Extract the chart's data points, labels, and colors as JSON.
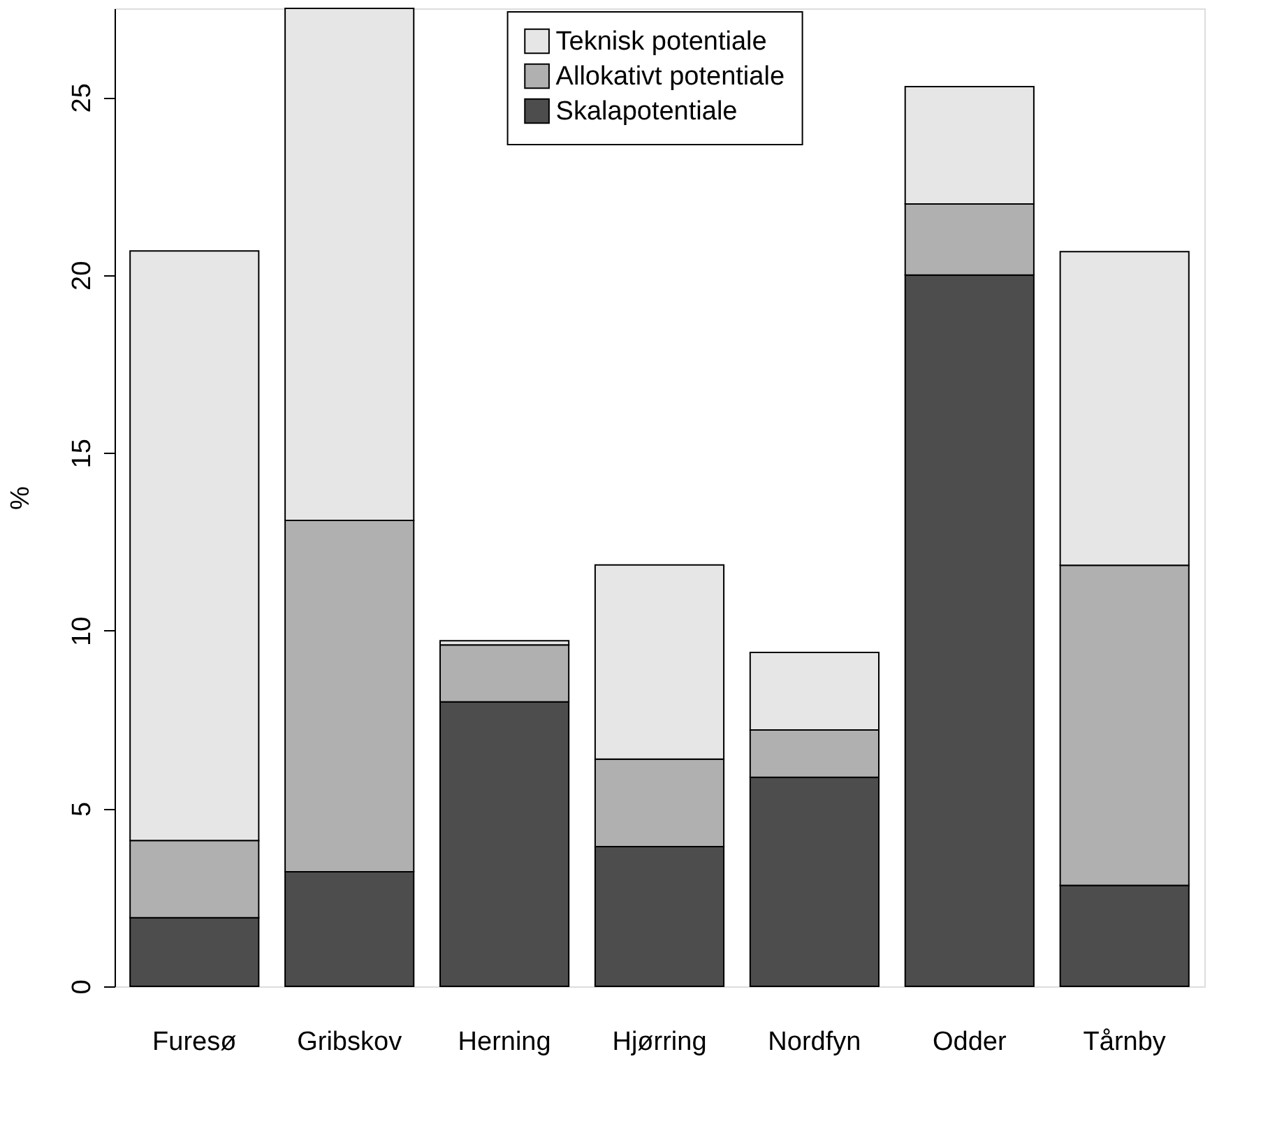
{
  "chart_data": {
    "type": "bar",
    "stacked": true,
    "ylabel": "%",
    "categories": [
      "Furesø",
      "Gribskov",
      "Herning",
      "Hjørring",
      "Nordfyn",
      "Odder",
      "Tårnby"
    ],
    "series": [
      {
        "name": "Skalapotentiale",
        "color": "#4d4d4d",
        "values": [
          1.93,
          3.22,
          8.0,
          3.93,
          5.88,
          20.0,
          2.84
        ]
      },
      {
        "name": "Allokativt potentiale",
        "color": "#b0b0b0",
        "values": [
          2.17,
          9.88,
          1.6,
          2.46,
          1.33,
          2.0,
          9.0
        ]
      },
      {
        "name": "Teknisk potentiale",
        "color": "#e6e6e6",
        "values": [
          16.58,
          14.4,
          0.12,
          5.46,
          2.18,
          3.3,
          8.82
        ]
      }
    ],
    "ylim": [
      0,
      27.5
    ],
    "yticks": [
      0,
      5,
      10,
      15,
      20,
      25
    ],
    "grid": false,
    "legend": "top"
  }
}
